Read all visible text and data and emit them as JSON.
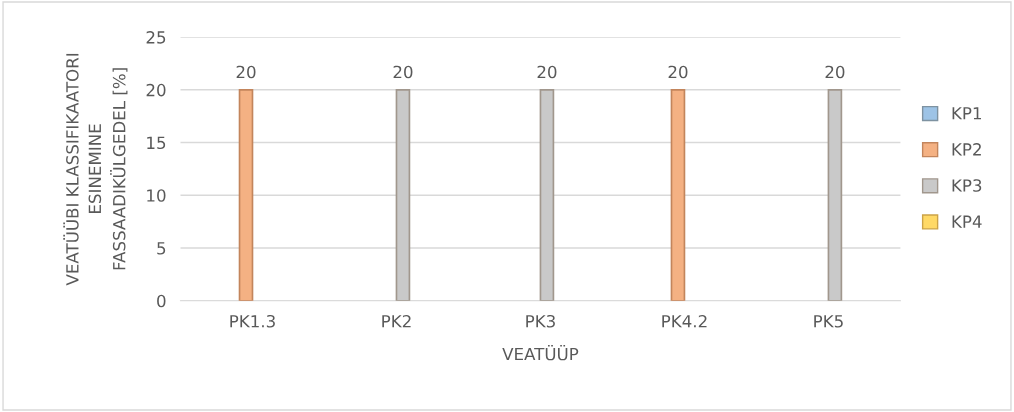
{
  "chart_data": {
    "type": "bar",
    "xlabel": "VEATÜÜP",
    "ylabel": "VEATÜÜBI KLASSIFIKAATORI\nESINEMINE\nFASSAADIKÜLGEDEL [%]",
    "categories": [
      "PK1.3",
      "PK2",
      "PK3",
      "PK4.2",
      "PK5"
    ],
    "series": [
      {
        "name": "KP1",
        "color": "#9dc3e6",
        "values": [
          null,
          null,
          null,
          null,
          null
        ]
      },
      {
        "name": "KP2",
        "color": "#f4b183",
        "values": [
          20,
          null,
          null,
          20,
          null
        ]
      },
      {
        "name": "KP3",
        "color": "#c9c9c9",
        "values": [
          null,
          20,
          20,
          null,
          20
        ]
      },
      {
        "name": "KP4",
        "color": "#ffd966",
        "values": [
          null,
          null,
          null,
          null,
          null
        ]
      }
    ],
    "ylim": [
      0,
      25
    ],
    "yticks": [
      0,
      5,
      10,
      15,
      20,
      25
    ],
    "grid": "y",
    "legend": "right",
    "data_labels": true
  }
}
